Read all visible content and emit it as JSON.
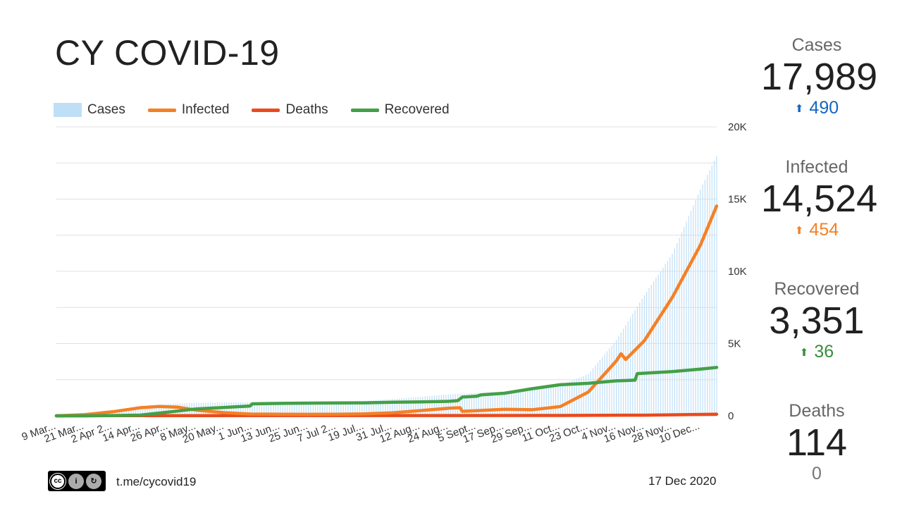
{
  "title": "CY COVID-19",
  "legend": {
    "cases": "Cases",
    "infected": "Infected",
    "deaths": "Deaths",
    "recovered": "Recovered"
  },
  "colors": {
    "cases": "#bfdff7",
    "infected": "#f58025",
    "deaths": "#ea4a1d",
    "recovered": "#43a047",
    "delta_cases": "#1565c0",
    "delta_infected": "#f58025",
    "delta_recovered": "#388e3c",
    "delta_deaths": "#757575"
  },
  "stats": {
    "cases": {
      "label": "Cases",
      "value": "17,989",
      "delta": "490"
    },
    "infected": {
      "label": "Infected",
      "value": "14,524",
      "delta": "454"
    },
    "recovered": {
      "label": "Recovered",
      "value": "3,351",
      "delta": "36"
    },
    "deaths": {
      "label": "Deaths",
      "value": "114",
      "delta": "0"
    }
  },
  "footer": {
    "license": "CC BY SA",
    "link": "t.me/cycovid19",
    "date": "17 Dec 2020"
  },
  "chart_data": {
    "type": "bar",
    "title": "",
    "xlabel": "",
    "ylabel": "",
    "ylim": [
      0,
      20000
    ],
    "y_ticks": [
      "0",
      "5K",
      "10K",
      "15K",
      "20K"
    ],
    "grid": true,
    "legend_position": "top-left",
    "x_tick_labels": [
      "9 Mar...",
      "21 Mar...",
      "2 Apr 2...",
      "14 Apr...",
      "26 Apr...",
      "8 May...",
      "20 May...",
      "1 Jun...",
      "13 Jun...",
      "25 Jun...",
      "7 Jul 2...",
      "19 Jul...",
      "31 Jul...",
      "12 Aug...",
      "24 Aug...",
      "5 Sept...",
      "17 Sep...",
      "29 Sep...",
      "11 Oct...",
      "23 Oct...",
      "4 Nov...",
      "16 Nov...",
      "28 Nov...",
      "10 Dec..."
    ],
    "x_start": "2020-03-09",
    "x_end": "2020-12-17",
    "series": [
      {
        "name": "Cases",
        "type": "bar",
        "points": [
          [
            "2020-03-09",
            2
          ],
          [
            "2020-03-21",
            84
          ],
          [
            "2020-04-02",
            320
          ],
          [
            "2020-04-14",
            662
          ],
          [
            "2020-04-26",
            822
          ],
          [
            "2020-05-08",
            891
          ],
          [
            "2020-05-20",
            928
          ],
          [
            "2020-06-01",
            952
          ],
          [
            "2020-06-13",
            985
          ],
          [
            "2020-06-25",
            996
          ],
          [
            "2020-07-07",
            1008
          ],
          [
            "2020-07-19",
            1040
          ],
          [
            "2020-07-31",
            1165
          ],
          [
            "2020-08-12",
            1307
          ],
          [
            "2020-08-24",
            1485
          ],
          [
            "2020-09-05",
            1576
          ],
          [
            "2020-09-17",
            1691
          ],
          [
            "2020-09-29",
            1850
          ],
          [
            "2020-10-11",
            2122
          ],
          [
            "2020-10-23",
            2890
          ],
          [
            "2020-11-04",
            5250
          ],
          [
            "2020-11-16",
            8350
          ],
          [
            "2020-11-28",
            11200
          ],
          [
            "2020-12-10",
            15680
          ],
          [
            "2020-12-17",
            17989
          ]
        ]
      },
      {
        "name": "Infected",
        "type": "line",
        "points": [
          [
            "2020-03-09",
            2
          ],
          [
            "2020-03-21",
            80
          ],
          [
            "2020-04-02",
            280
          ],
          [
            "2020-04-14",
            560
          ],
          [
            "2020-04-22",
            650
          ],
          [
            "2020-04-30",
            600
          ],
          [
            "2020-05-08",
            390
          ],
          [
            "2020-05-20",
            220
          ],
          [
            "2020-05-31",
            120
          ],
          [
            "2020-06-13",
            110
          ],
          [
            "2020-06-25",
            100
          ],
          [
            "2020-07-07",
            110
          ],
          [
            "2020-07-19",
            130
          ],
          [
            "2020-07-31",
            210
          ],
          [
            "2020-08-12",
            360
          ],
          [
            "2020-08-24",
            520
          ],
          [
            "2020-08-29",
            560
          ],
          [
            "2020-08-30",
            310
          ],
          [
            "2020-09-05",
            350
          ],
          [
            "2020-09-17",
            450
          ],
          [
            "2020-09-29",
            420
          ],
          [
            "2020-10-11",
            640
          ],
          [
            "2020-10-23",
            1650
          ],
          [
            "2020-11-04",
            3800
          ],
          [
            "2020-11-06",
            4300
          ],
          [
            "2020-11-08",
            3900
          ],
          [
            "2020-11-16",
            5200
          ],
          [
            "2020-11-28",
            8200
          ],
          [
            "2020-12-10",
            11800
          ],
          [
            "2020-12-17",
            14524
          ]
        ]
      },
      {
        "name": "Deaths",
        "type": "line",
        "points": [
          [
            "2020-03-09",
            0
          ],
          [
            "2020-04-02",
            9
          ],
          [
            "2020-05-08",
            16
          ],
          [
            "2020-06-13",
            19
          ],
          [
            "2020-08-12",
            21
          ],
          [
            "2020-10-11",
            24
          ],
          [
            "2020-11-16",
            45
          ],
          [
            "2020-12-17",
            114
          ]
        ]
      },
      {
        "name": "Recovered",
        "type": "line",
        "points": [
          [
            "2020-03-09",
            0
          ],
          [
            "2020-03-21",
            0
          ],
          [
            "2020-04-02",
            20
          ],
          [
            "2020-04-14",
            50
          ],
          [
            "2020-04-26",
            260
          ],
          [
            "2020-05-08",
            480
          ],
          [
            "2020-05-20",
            580
          ],
          [
            "2020-05-31",
            680
          ],
          [
            "2020-06-01",
            830
          ],
          [
            "2020-06-13",
            860
          ],
          [
            "2020-06-25",
            880
          ],
          [
            "2020-07-07",
            890
          ],
          [
            "2020-07-19",
            900
          ],
          [
            "2020-07-31",
            940
          ],
          [
            "2020-08-12",
            960
          ],
          [
            "2020-08-24",
            1000
          ],
          [
            "2020-08-28",
            1050
          ],
          [
            "2020-08-30",
            1300
          ],
          [
            "2020-09-05",
            1350
          ],
          [
            "2020-09-07",
            1450
          ],
          [
            "2020-09-17",
            1560
          ],
          [
            "2020-09-29",
            1880
          ],
          [
            "2020-10-11",
            2150
          ],
          [
            "2020-10-23",
            2250
          ],
          [
            "2020-11-04",
            2420
          ],
          [
            "2020-11-12",
            2470
          ],
          [
            "2020-11-13",
            2920
          ],
          [
            "2020-11-28",
            3060
          ],
          [
            "2020-12-10",
            3230
          ],
          [
            "2020-12-17",
            3351
          ]
        ]
      }
    ]
  }
}
